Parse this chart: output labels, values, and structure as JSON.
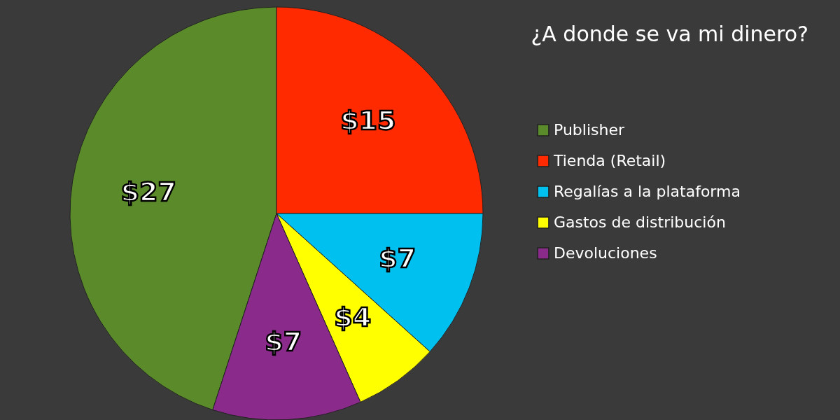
{
  "chart_data": {
    "type": "pie",
    "title": "¿A donde se va mi dinero?",
    "categories": [
      "Publisher",
      "Tienda (Retail)",
      "Regalías a la plataforma",
      "Gastos de distribución",
      "Devoluciones"
    ],
    "values": [
      27,
      15,
      7,
      4,
      7
    ],
    "value_labels": [
      "$27",
      "$15",
      "$7",
      "$4",
      "$7"
    ],
    "colors": [
      "#5a8a2a",
      "#ff2a00",
      "#00c0f0",
      "#ffff00",
      "#8a2a8a"
    ],
    "legend": "right"
  }
}
